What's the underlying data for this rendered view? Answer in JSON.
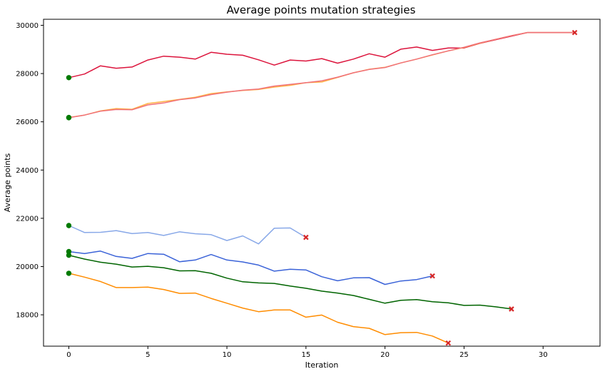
{
  "chart_data": {
    "type": "line",
    "title": "Average points mutation strategies",
    "xlabel": "Iteration",
    "ylabel": "Average points",
    "xlim": [
      -1.6,
      33.6
    ],
    "ylim": [
      16700,
      30250
    ],
    "xticks": [
      0,
      5,
      10,
      15,
      20,
      25,
      30
    ],
    "yticks": [
      18000,
      20000,
      22000,
      24000,
      26000,
      28000,
      30000
    ],
    "grid": false,
    "legend": "none",
    "start_marker": {
      "shape": "circle",
      "color": "#007a00"
    },
    "end_marker": {
      "shape": "x",
      "color": "#d62728"
    },
    "series": [
      {
        "color": "#dc143c",
        "end_marker": true,
        "x": [
          0,
          1,
          2,
          3,
          4,
          5,
          6,
          7,
          8,
          9,
          10,
          11,
          12,
          13,
          14,
          15,
          16,
          17,
          18,
          19,
          20,
          21,
          22,
          23,
          24,
          25,
          26,
          27,
          28,
          29,
          30,
          31,
          32
        ],
        "values": [
          27830,
          27980,
          28320,
          28220,
          28270,
          28560,
          28720,
          28680,
          28600,
          28880,
          28800,
          28760,
          28570,
          28350,
          28560,
          28520,
          28620,
          28430,
          28600,
          28820,
          28680,
          29010,
          29100,
          28960,
          29060,
          29060,
          29250,
          29400,
          29550,
          29700,
          29700,
          29700,
          29700
        ]
      },
      {
        "color": "#ffb347",
        "end_marker": false,
        "x": [
          0,
          1,
          2,
          3,
          4,
          5,
          6,
          7,
          8,
          9,
          10,
          11,
          12,
          13,
          14,
          15,
          16,
          17,
          18,
          19,
          20,
          21,
          22,
          23,
          24,
          25,
          26,
          27,
          28,
          29,
          30,
          31,
          32
        ],
        "values": [
          26180,
          26280,
          26450,
          26550,
          26520,
          26760,
          26840,
          26930,
          27020,
          27170,
          27240,
          27300,
          27340,
          27440,
          27510,
          27620,
          27650,
          27840,
          28030,
          28180,
          28260,
          28440,
          28600,
          28770,
          28940,
          29080,
          29260,
          29420,
          29570,
          29700,
          29700,
          29700,
          29700
        ]
      },
      {
        "color": "#f0717a",
        "end_marker": false,
        "x": [
          0,
          1,
          2,
          3,
          4,
          5,
          6,
          7,
          8,
          9,
          10,
          11,
          12,
          13,
          14,
          15,
          16,
          17,
          18,
          19,
          20,
          21,
          22,
          23,
          24,
          25,
          26,
          27,
          28,
          29,
          30,
          31,
          32
        ],
        "values": [
          26170,
          26280,
          26440,
          26510,
          26500,
          26700,
          26780,
          26920,
          26990,
          27130,
          27230,
          27310,
          27360,
          27480,
          27550,
          27620,
          27700,
          27850,
          28030,
          28170,
          28250,
          28440,
          28600,
          28780,
          28940,
          29090,
          29270,
          29420,
          29570,
          29700,
          29700,
          29700,
          29700
        ]
      },
      {
        "color": "#88a8e8",
        "end_marker": true,
        "x": [
          0,
          1,
          2,
          3,
          4,
          5,
          6,
          7,
          8,
          9,
          10,
          11,
          12,
          13,
          14,
          15
        ],
        "values": [
          21700,
          21410,
          21420,
          21490,
          21370,
          21410,
          21290,
          21440,
          21360,
          21320,
          21080,
          21270,
          20940,
          21590,
          21600,
          21210
        ]
      },
      {
        "color": "#3b63d8",
        "end_marker": true,
        "x": [
          0,
          1,
          2,
          3,
          4,
          5,
          6,
          7,
          8,
          9,
          10,
          11,
          12,
          13,
          14,
          15,
          16,
          17,
          18,
          19,
          20,
          21,
          22,
          23
        ],
        "values": [
          20620,
          20540,
          20640,
          20420,
          20340,
          20540,
          20510,
          20200,
          20270,
          20500,
          20270,
          20190,
          20060,
          19810,
          19890,
          19860,
          19580,
          19410,
          19530,
          19540,
          19260,
          19400,
          19460,
          19610
        ]
      },
      {
        "color": "#006400",
        "end_marker": true,
        "x": [
          0,
          1,
          2,
          3,
          4,
          5,
          6,
          7,
          8,
          9,
          10,
          11,
          12,
          13,
          14,
          15,
          16,
          17,
          18,
          19,
          20,
          21,
          22,
          23,
          24,
          25,
          26,
          27,
          28
        ],
        "values": [
          20470,
          20310,
          20180,
          20100,
          19980,
          20010,
          19950,
          19820,
          19830,
          19720,
          19520,
          19370,
          19320,
          19300,
          19190,
          19100,
          18980,
          18900,
          18800,
          18640,
          18480,
          18600,
          18630,
          18540,
          18500,
          18390,
          18400,
          18330,
          18240
        ]
      },
      {
        "color": "#ff8c00",
        "end_marker": true,
        "x": [
          0,
          1,
          2,
          3,
          4,
          5,
          6,
          7,
          8,
          9,
          10,
          11,
          12,
          13,
          14,
          15,
          16,
          17,
          18,
          19,
          20,
          21,
          22,
          23,
          24
        ],
        "values": [
          19720,
          19560,
          19380,
          19130,
          19130,
          19150,
          19050,
          18890,
          18900,
          18680,
          18480,
          18280,
          18130,
          18200,
          18200,
          17900,
          17990,
          17690,
          17510,
          17440,
          17180,
          17260,
          17270,
          17120,
          16830
        ]
      }
    ]
  }
}
